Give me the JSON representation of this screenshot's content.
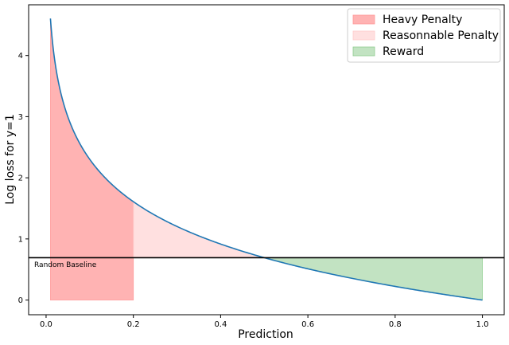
{
  "chart_data": {
    "type": "area",
    "xlabel": "Prediction",
    "ylabel": "Log loss for y=1",
    "xlim": [
      -0.04,
      1.05
    ],
    "ylim": [
      -0.24,
      4.83
    ],
    "xticks": [
      0.0,
      0.2,
      0.4,
      0.6,
      0.8,
      1.0
    ],
    "xtick_labels": [
      "0.0",
      "0.2",
      "0.4",
      "0.6",
      "0.8",
      "1.0"
    ],
    "yticks": [
      0,
      1,
      2,
      3,
      4
    ],
    "ytick_labels": [
      "0",
      "1",
      "2",
      "3",
      "4"
    ],
    "grid": false,
    "legend_position": "top-right",
    "curve": {
      "function": "-ln(x)",
      "x_start": 0.01,
      "x_end": 1.0,
      "color": "#1f77b4"
    },
    "baseline": {
      "y": 0.693,
      "label": "Random Baseline",
      "color": "#000000"
    },
    "regions": [
      {
        "name": "Heavy Penalty",
        "x_start": 0.01,
        "x_end": 0.2,
        "from": "curve_to_zero",
        "color": "#ff9999",
        "opacity": 0.75
      },
      {
        "name": "Reasonnable Penalty",
        "x_start": 0.2,
        "x_end": 0.5,
        "from": "curve_to_baseline",
        "color": "#ffcccc",
        "opacity": 0.6
      },
      {
        "name": "Reward",
        "x_start": 0.5,
        "x_end": 1.0,
        "from": "baseline_to_curve",
        "color": "#8fcc8f",
        "opacity": 0.55
      }
    ]
  }
}
